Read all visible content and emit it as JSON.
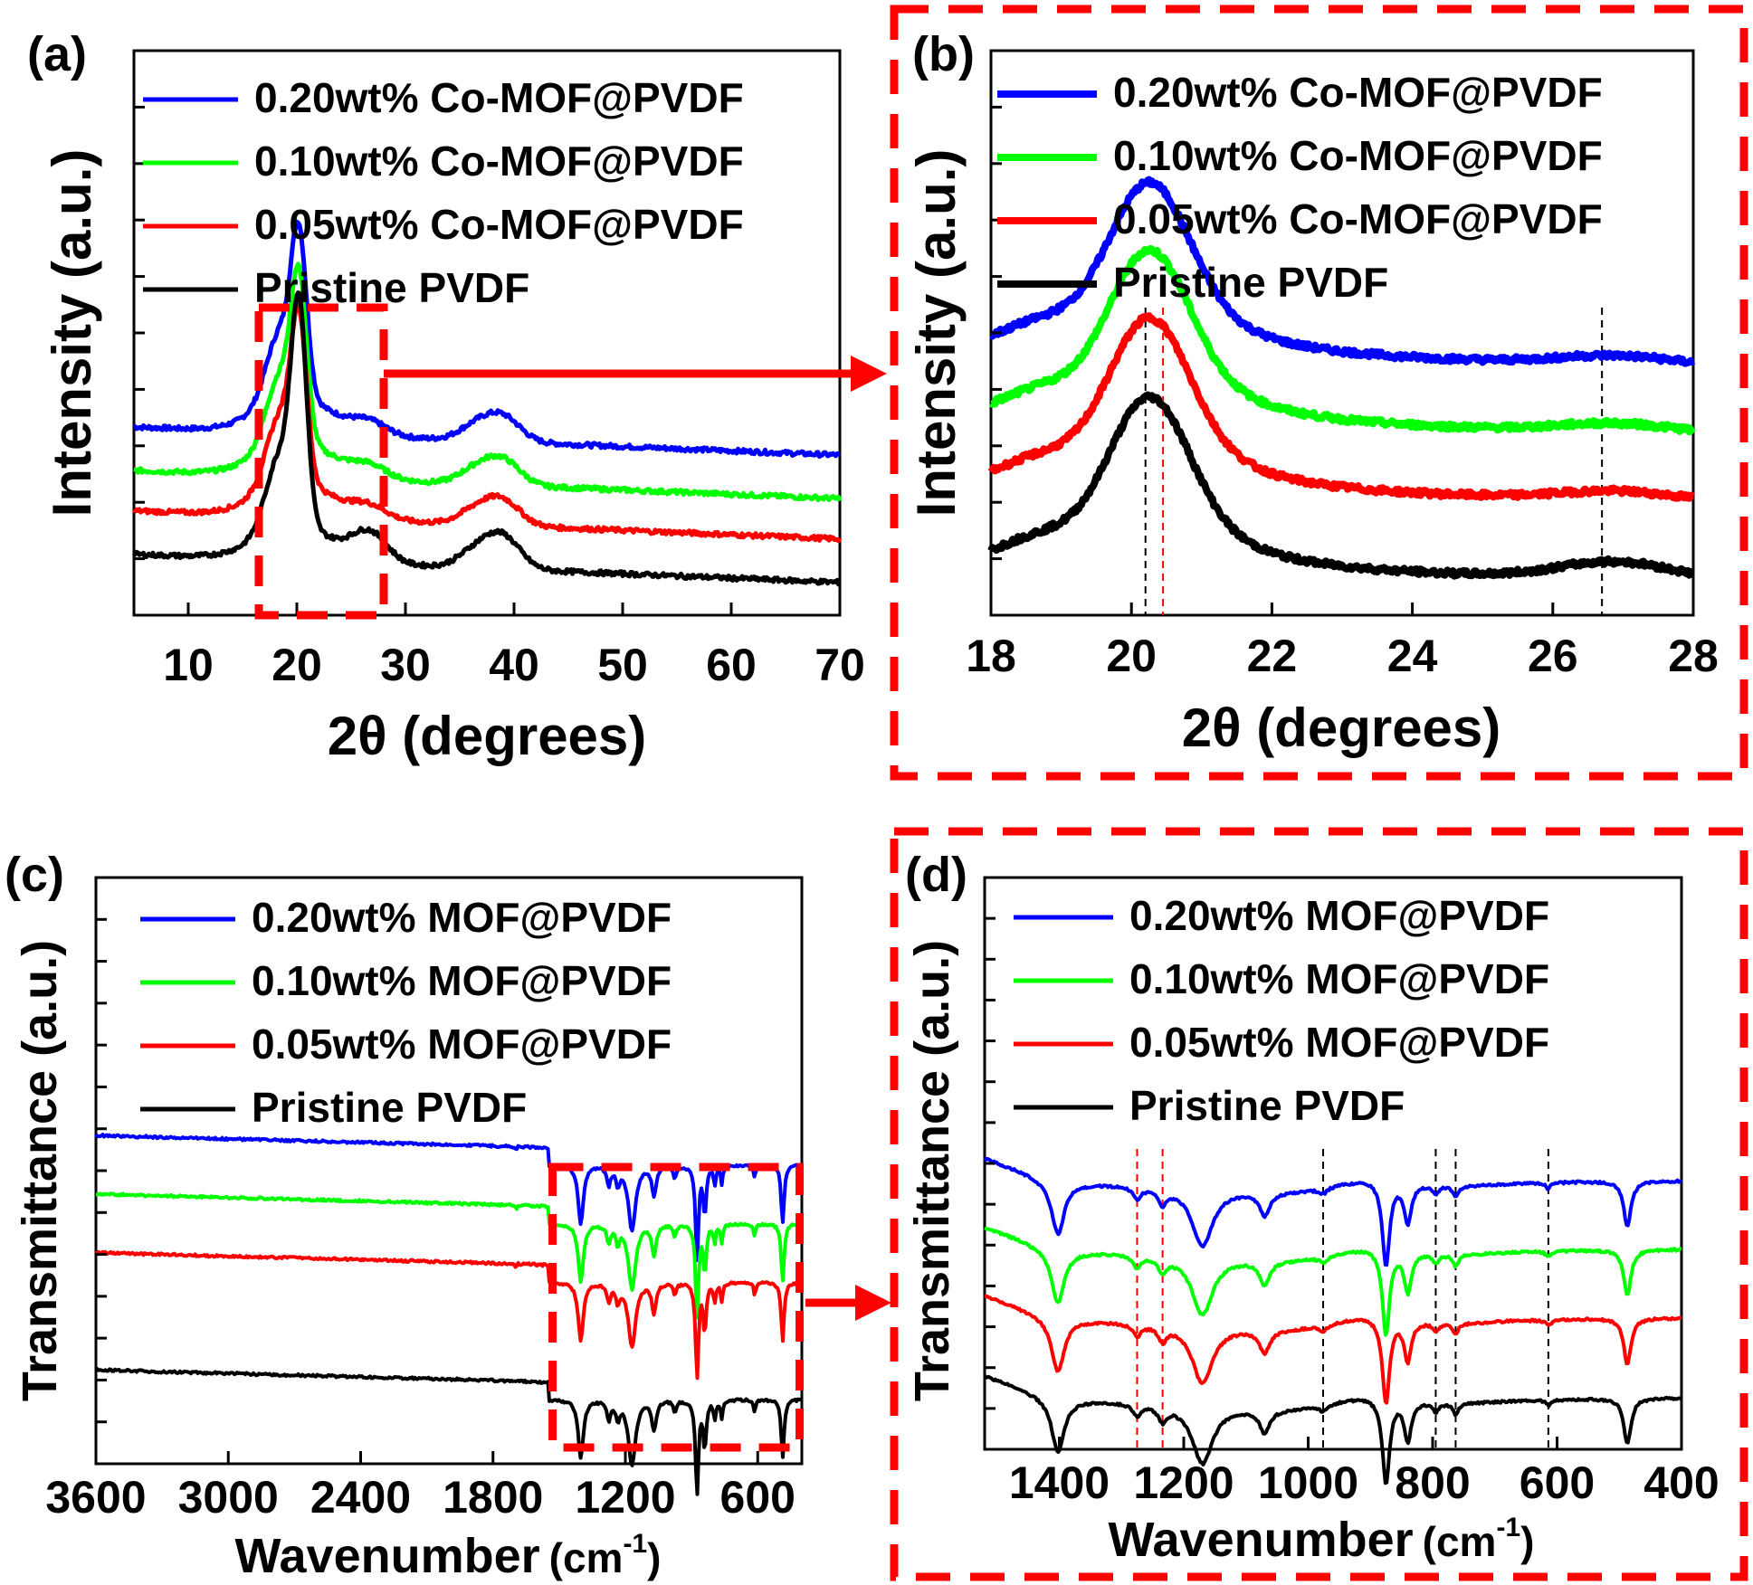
{
  "chart_data": [
    {
      "panel": "(a)",
      "type": "line",
      "xlabel": "2θ (degrees)",
      "ylabel": "Intensity (a.u.)",
      "xlim": [
        5,
        70
      ],
      "xticks": [
        10,
        20,
        30,
        40,
        50,
        60,
        70
      ],
      "y_scale": "arbitrary (offset stacked)",
      "legend_position": "top",
      "series": [
        {
          "name": "0.20wt% Co-MOF@PVDF",
          "color": "#0000ff",
          "peaks": [
            {
              "x": 18.5,
              "h": 0.3
            },
            {
              "x": 20.2,
              "h": 0.62
            },
            {
              "x": 26.7,
              "h": 0.05
            },
            {
              "x": 36.5,
              "h": 0.06
            },
            {
              "x": 39.0,
              "h": 0.1
            }
          ],
          "baseline": [
            0.57,
            0.43
          ]
        },
        {
          "name": "0.10wt% Co-MOF@PVDF",
          "color": "#00ff00",
          "peaks": [
            {
              "x": 18.5,
              "h": 0.3
            },
            {
              "x": 20.2,
              "h": 0.62
            },
            {
              "x": 26.7,
              "h": 0.05
            },
            {
              "x": 36.5,
              "h": 0.06
            },
            {
              "x": 39.0,
              "h": 0.1
            }
          ],
          "baseline": [
            0.43,
            0.29
          ]
        },
        {
          "name": "0.05wt% Co-MOF@PVDF",
          "color": "#ff0000",
          "peaks": [
            {
              "x": 18.5,
              "h": 0.3
            },
            {
              "x": 20.2,
              "h": 0.62
            },
            {
              "x": 26.7,
              "h": 0.05
            },
            {
              "x": 36.5,
              "h": 0.06
            },
            {
              "x": 39.0,
              "h": 0.1
            }
          ],
          "baseline": [
            0.3,
            0.16
          ]
        },
        {
          "name": "Pristine PVDF",
          "color": "#000000",
          "peaks": [
            {
              "x": 18.5,
              "h": 0.32
            },
            {
              "x": 20.2,
              "h": 0.85
            },
            {
              "x": 26.7,
              "h": 0.12
            },
            {
              "x": 36.5,
              "h": 0.07
            },
            {
              "x": 39.0,
              "h": 0.13
            }
          ],
          "baseline": [
            0.16,
            0.02
          ]
        }
      ],
      "highlight_region_x": [
        16.5,
        28
      ]
    },
    {
      "panel": "(b)",
      "type": "line",
      "xlabel": "2θ (degrees)",
      "ylabel": "Intensity (a.u.)",
      "xlim": [
        18,
        28
      ],
      "xticks": [
        18,
        20,
        22,
        24,
        26,
        28
      ],
      "y_scale": "arbitrary (offset stacked)",
      "legend_position": "top",
      "reference_lines": [
        {
          "x": 20.2,
          "color": "#000000"
        },
        {
          "x": 20.45,
          "color": "#ff0000"
        },
        {
          "x": 26.7,
          "color": "#000000"
        }
      ],
      "series": [
        {
          "name": "0.20wt% Co-MOF@PVDF",
          "color": "#0000ff",
          "offset": 0.46
        },
        {
          "name": "0.10wt% Co-MOF@PVDF",
          "color": "#00ff00",
          "offset": 0.34
        },
        {
          "name": "0.05wt% Co-MOF@PVDF",
          "color": "#ff0000",
          "offset": 0.22
        },
        {
          "name": "Pristine PVDF",
          "color": "#000000",
          "offset": 0.08
        }
      ]
    },
    {
      "panel": "(c)",
      "type": "line",
      "xlabel": "Wavenumber (cm-1)",
      "ylabel": "Transmittance (a.u.)",
      "xlim": [
        3600,
        400
      ],
      "x_reversed": true,
      "xticks": [
        3600,
        3000,
        2400,
        1800,
        1200,
        600
      ],
      "y_scale": "arbitrary (offset stacked)",
      "legend_position": "top",
      "series": [
        {
          "name": "0.20wt% MOF@PVDF",
          "color": "#0000ff",
          "offset": 0.54
        },
        {
          "name": "0.10wt% MOF@PVDF",
          "color": "#00ff00",
          "offset": 0.44
        },
        {
          "name": "0.05wt% MOF@PVDF",
          "color": "#ff0000",
          "offset": 0.34
        },
        {
          "name": "Pristine PVDF",
          "color": "#000000",
          "offset": 0.14
        }
      ],
      "highlight_region_x": [
        1530,
        410
      ]
    },
    {
      "panel": "(d)",
      "type": "line",
      "xlabel": "Wavenumber (cm-1)",
      "ylabel": "Transmittance (a.u.)",
      "xlim": [
        1520,
        400
      ],
      "x_reversed": true,
      "xticks": [
        1400,
        1200,
        1000,
        800,
        600,
        400
      ],
      "y_scale": "arbitrary (offset stacked)",
      "legend_position": "top",
      "reference_lines": [
        {
          "x": 1275,
          "color": "#ff0000"
        },
        {
          "x": 1234,
          "color": "#ff0000"
        },
        {
          "x": 976,
          "color": "#000000"
        },
        {
          "x": 795,
          "color": "#000000"
        },
        {
          "x": 763,
          "color": "#000000"
        },
        {
          "x": 614,
          "color": "#000000"
        }
      ],
      "series": [
        {
          "name": "0.20wt% MOF@PVDF",
          "color": "#0000ff",
          "offset": 0.47
        },
        {
          "name": "0.10wt% MOF@PVDF",
          "color": "#00ff00",
          "offset": 0.35
        },
        {
          "name": "0.05wt% MOF@PVDF",
          "color": "#ff0000",
          "offset": 0.23
        },
        {
          "name": "Pristine PVDF",
          "color": "#000000",
          "offset": 0.09
        }
      ]
    }
  ],
  "labels": {
    "a": "(a)",
    "b": "(b)",
    "c": "(c)",
    "d": "(d)",
    "xrd_x": "2θ (degrees)",
    "xrd_y": "Intensity (a.u.)",
    "ir_x": "Wavenumber",
    "ir_unit_open": "(cm",
    "ir_unit_sup": "-1",
    "ir_unit_close": ")",
    "ir_y": "Transmittance (a.u.)"
  },
  "colors": {
    "blue": "#0000ff",
    "green": "#00ff00",
    "red": "#ff0000",
    "black": "#000000",
    "highlight": "#ff0000"
  }
}
